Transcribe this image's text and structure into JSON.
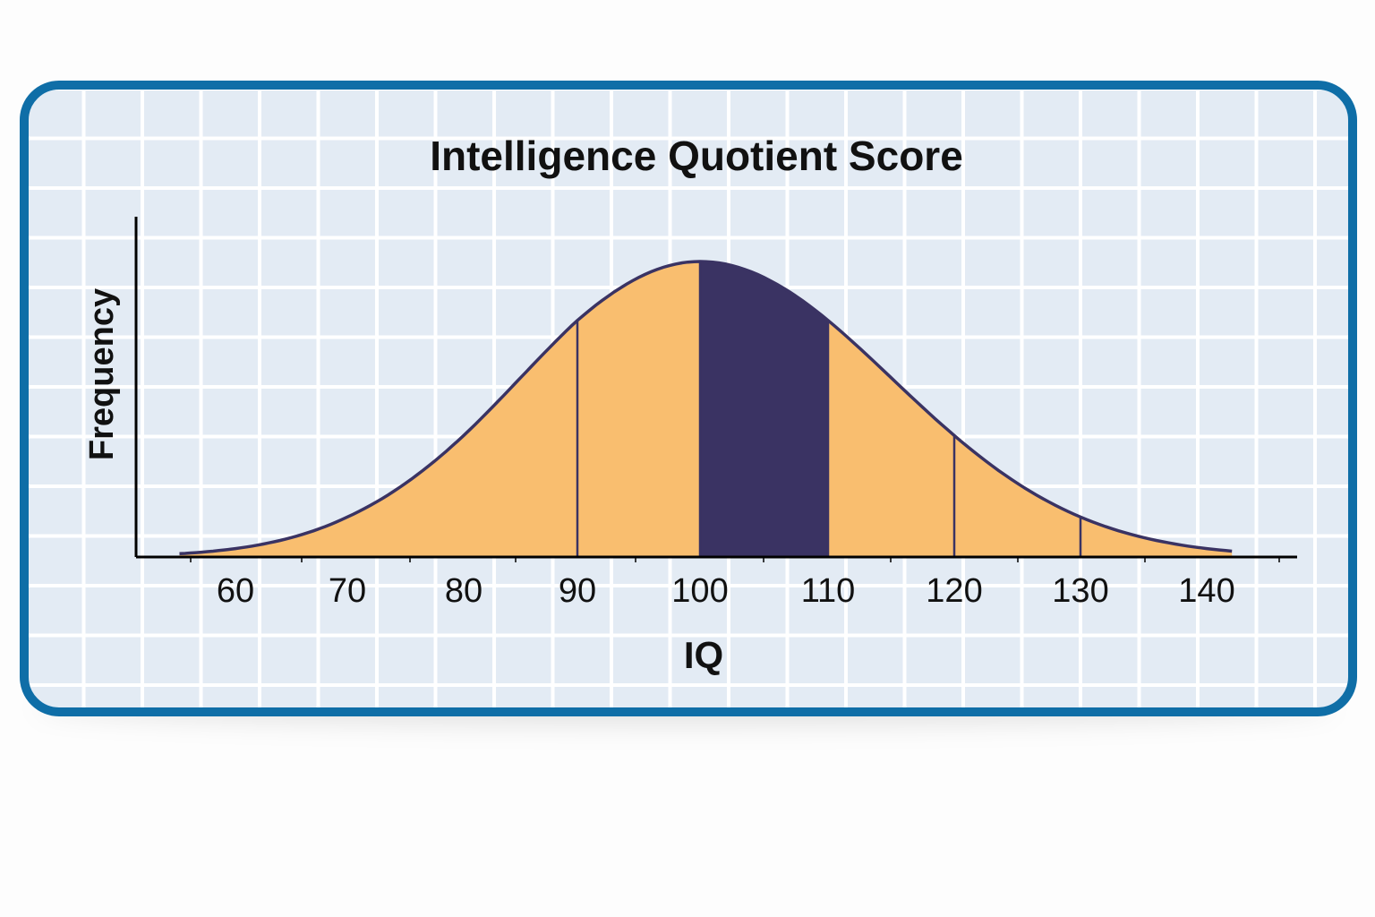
{
  "chart_data": {
    "type": "area",
    "title": "Intelligence Quotient Score",
    "xlabel": "IQ",
    "ylabel": "Frequency",
    "x_ticks": [
      60,
      70,
      80,
      90,
      100,
      110,
      120,
      130,
      140
    ],
    "xlim": [
      55,
      142
    ],
    "distribution": {
      "kind": "normal",
      "mean": 100,
      "sd": 15
    },
    "boundaries": [
      90,
      100,
      110,
      120,
      130
    ],
    "regions": [
      {
        "from": 55,
        "to": 100,
        "color": "#f9be6f"
      },
      {
        "from": 100,
        "to": 110,
        "color": "#3a3363"
      },
      {
        "from": 110,
        "to": 142,
        "color": "#f9be6f"
      }
    ],
    "colors": {
      "fill": "#f9be6f",
      "highlight": "#3a3363",
      "outline": "#3a3363",
      "border": "#0f6ea7",
      "axis": "#000000"
    }
  }
}
